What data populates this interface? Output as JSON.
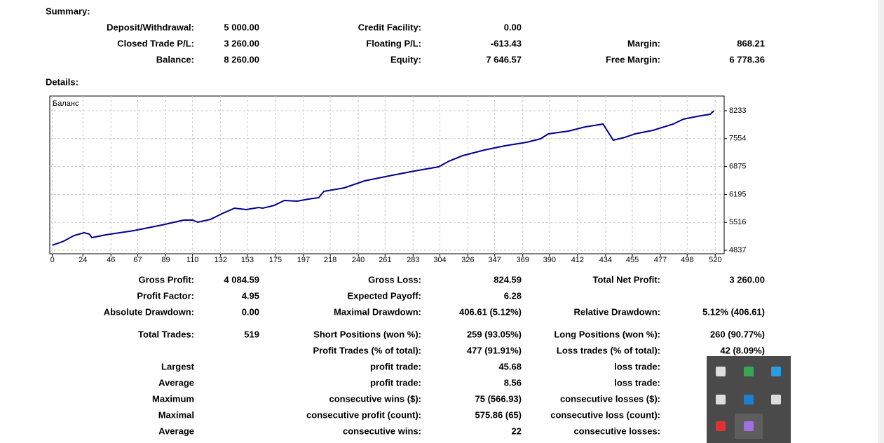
{
  "summary": {
    "title": "Summary:",
    "rows": [
      {
        "label1": "Deposit/Withdrawal:",
        "value1": "5 000.00",
        "label2": "Credit Facility:",
        "value2": "0.00"
      },
      {
        "label1": "Closed Trade P/L:",
        "value1": "3 260.00",
        "label2": "Floating P/L:",
        "value2": "-613.43",
        "label3": "Margin:",
        "value3": "868.21"
      },
      {
        "label1": "Balance:",
        "value1": "8 260.00",
        "label2": "Equity:",
        "value2": "7 646.57",
        "label3": "Free Margin:",
        "value3": "6 778.36"
      }
    ]
  },
  "details": {
    "title": "Details:",
    "rows": [
      {
        "label1": "Gross Profit:",
        "value1": "4 084.59",
        "label2": "Gross Loss:",
        "value2": "824.59",
        "label3": "Total Net Profit:",
        "value3": "3 260.00"
      },
      {
        "label1": "Profit Factor:",
        "value1": "4.95",
        "label2": "Expected Payoff:",
        "value2": "6.28"
      },
      {
        "label1": "Absolute Drawdown:",
        "value1": "0.00",
        "label2": "Maximal Drawdown:",
        "value2": "406.61 (5.12%)",
        "label3": "Relative Drawdown:",
        "value3": "5.12% (406.61)"
      },
      {
        "label1": "Total Trades:",
        "value1": "519",
        "label2": "Short Positions (won %):",
        "value2": "259 (93.05%)",
        "label3": "Long Positions (won %):",
        "value3": "260 (90.77%)"
      },
      {
        "label2": "Profit Trades (% of total):",
        "value2": "477 (91.91%)",
        "label3": "Loss trades (% of total):",
        "value3": "42 (8.09%)"
      },
      {
        "label1": "Largest",
        "label2": "profit trade:",
        "value2": "45.68",
        "label3": "loss trade:"
      },
      {
        "label1": "Average",
        "label2": "profit trade:",
        "value2": "8.56",
        "label3": "loss trade:"
      },
      {
        "label1": "Maximum",
        "label2": "consecutive wins ($):",
        "value2": "75 (566.93)",
        "label3": "consecutive losses ($):"
      },
      {
        "label1": "Maximal",
        "label2": "consecutive profit (count):",
        "value2": "575.86 (65)",
        "label3": "consecutive loss (count):"
      },
      {
        "label1": "Average",
        "label2": "consecutive wins:",
        "value2": "22",
        "label3": "consecutive losses:"
      }
    ]
  },
  "chart_data": {
    "type": "line",
    "grid": true,
    "x": [
      0,
      9,
      17,
      25,
      29,
      31,
      42,
      64,
      86,
      103,
      110,
      114,
      124,
      134,
      143,
      152,
      162,
      165,
      174,
      182,
      192,
      201,
      209,
      213,
      229,
      245,
      264,
      284,
      303,
      311,
      322,
      339,
      355,
      372,
      383,
      389,
      405,
      418,
      432,
      440,
      449,
      457,
      471,
      487,
      495,
      506,
      516,
      519
    ],
    "series": [
      {
        "name": "Баланс",
        "color": "#00008b",
        "values": [
          4957,
          5059,
          5195,
          5264,
          5230,
          5144,
          5212,
          5315,
          5451,
          5571,
          5571,
          5520,
          5588,
          5741,
          5861,
          5827,
          5878,
          5861,
          5929,
          6049,
          6032,
          6083,
          6117,
          6270,
          6356,
          6526,
          6646,
          6765,
          6868,
          7004,
          7141,
          7277,
          7380,
          7465,
          7550,
          7670,
          7738,
          7840,
          7909,
          7516,
          7584,
          7670,
          7755,
          7909,
          8028,
          8096,
          8147,
          8233
        ]
      }
    ],
    "xlim": [
      -2,
      527
    ],
    "xticks": [
      0,
      24,
      46,
      67,
      89,
      110,
      132,
      153,
      175,
      197,
      218,
      240,
      261,
      283,
      304,
      326,
      347,
      369,
      390,
      412,
      434,
      455,
      477,
      498,
      520
    ],
    "ylim": [
      4752,
      8591
    ],
    "yticks": [
      4837,
      5516,
      6195,
      6875,
      7554,
      8233
    ]
  }
}
